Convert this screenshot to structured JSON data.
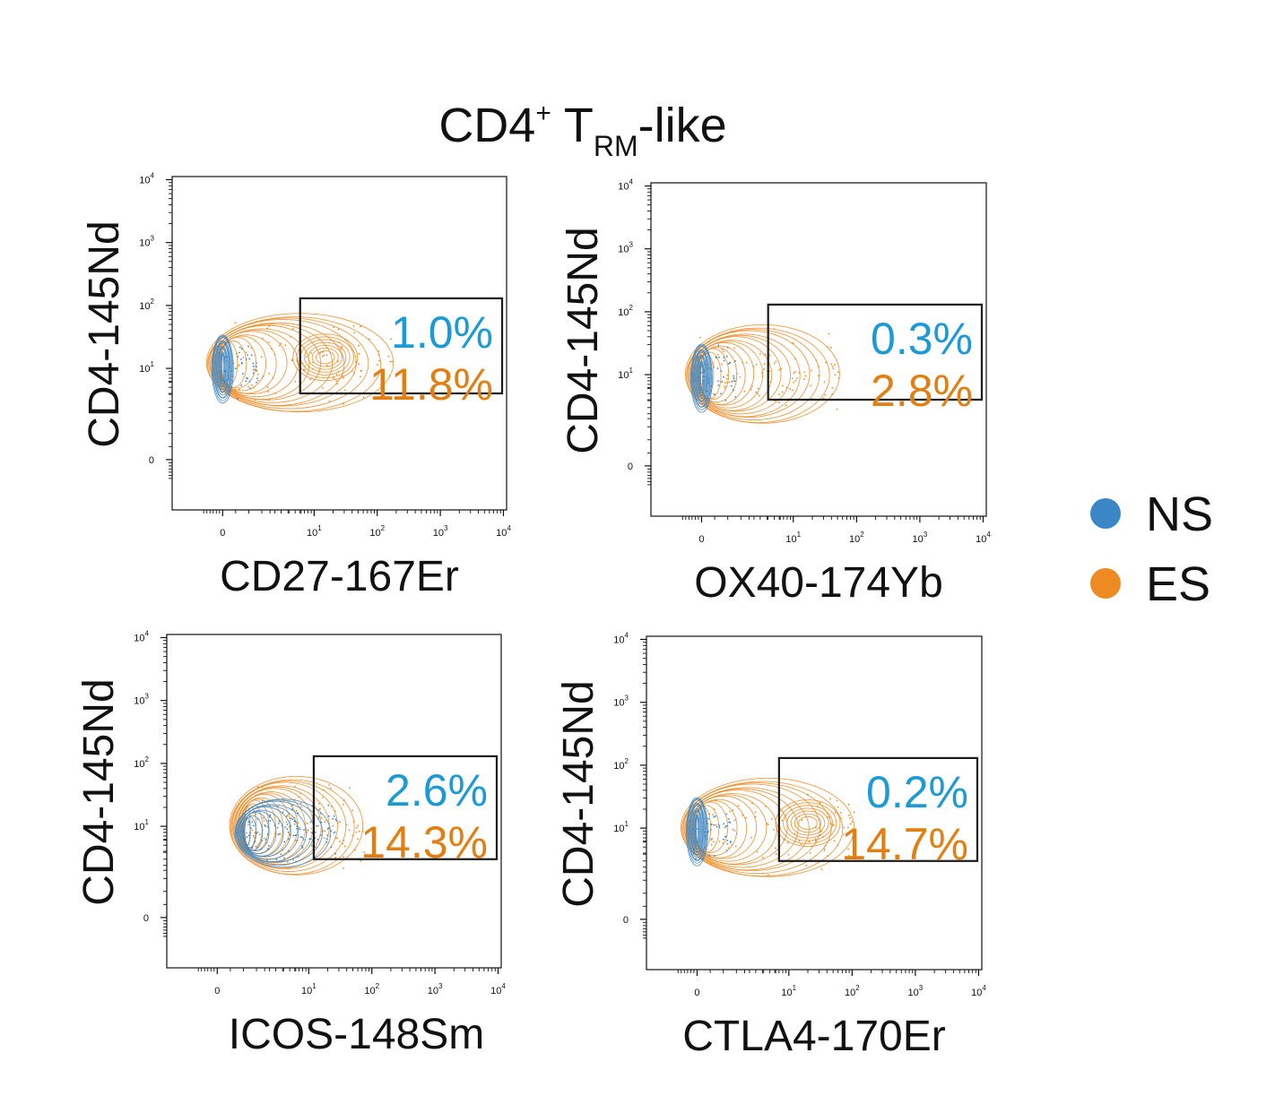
{
  "title": {
    "main": "CD4",
    "sup": "+",
    "mid": " T",
    "sub": "RM",
    "tail": "-like"
  },
  "colors": {
    "NS": "#3b86c6",
    "ES": "#ee8a22",
    "NS_text": "#1c9ad6",
    "ES_text": "#e27f12",
    "gate": "#1a1a1a"
  },
  "legend": [
    {
      "label": "NS",
      "color": "#3b86c6"
    },
    {
      "label": "ES",
      "color": "#ee8a22"
    }
  ],
  "chart_data": [
    {
      "type": "scatter",
      "xlabel": "CD27-167Er",
      "ylabel": "CD4-145Nd",
      "x_scale": "biexponential",
      "y_scale": "biexponential",
      "xlim": [
        -1,
        10000
      ],
      "ylim": [
        -1,
        10000
      ],
      "x_ticks": [
        "0",
        "10^1",
        "10^2",
        "10^3",
        "10^4"
      ],
      "y_ticks": [
        "0",
        "10^1",
        "10^2",
        "10^3",
        "10^4"
      ],
      "gate": {
        "x": [
          6,
          10000
        ],
        "y": [
          4,
          130
        ]
      },
      "series": [
        {
          "name": "NS",
          "gate_percent": "1.0%",
          "center": [
            0,
            10
          ],
          "spread_x": "narrow",
          "spread_y": "0.5 decade"
        },
        {
          "name": "ES",
          "gate_percent": "11.8%",
          "center": [
            0,
            12
          ],
          "extends_to_x": 100,
          "secondary_center": [
            15,
            15
          ]
        }
      ]
    },
    {
      "type": "scatter",
      "xlabel": "OX40-174Yb",
      "ylabel": "CD4-145Nd",
      "x_scale": "biexponential",
      "y_scale": "biexponential",
      "xlim": [
        -1,
        10000
      ],
      "ylim": [
        -1,
        10000
      ],
      "x_ticks": [
        "0",
        "10^1",
        "10^2",
        "10^3",
        "10^4"
      ],
      "y_ticks": [
        "0",
        "10^1",
        "10^2",
        "10^3",
        "10^4"
      ],
      "gate": {
        "x": [
          4,
          10000
        ],
        "y": [
          4,
          130
        ]
      },
      "series": [
        {
          "name": "NS",
          "gate_percent": "0.3%",
          "center": [
            0,
            9
          ]
        },
        {
          "name": "ES",
          "gate_percent": "2.8%",
          "center": [
            0,
            10
          ],
          "extends_to_x": 30
        }
      ]
    },
    {
      "type": "scatter",
      "xlabel": "ICOS-148Sm",
      "ylabel": "CD4-145Nd",
      "x_scale": "biexponential",
      "y_scale": "biexponential",
      "xlim": [
        -1,
        10000
      ],
      "ylim": [
        -1,
        10000
      ],
      "x_ticks": [
        "0",
        "10^1",
        "10^2",
        "10^3",
        "10^4"
      ],
      "y_ticks": [
        "0",
        "10^1",
        "10^2",
        "10^3",
        "10^4"
      ],
      "gate": {
        "x": [
          12,
          10000
        ],
        "y": [
          3,
          130
        ]
      },
      "series": [
        {
          "name": "NS",
          "gate_percent": "2.6%",
          "center": [
            1,
            8
          ],
          "extends_to_x": 15
        },
        {
          "name": "ES",
          "gate_percent": "14.3%",
          "center": [
            1,
            10
          ],
          "extends_to_x": 40
        }
      ]
    },
    {
      "type": "scatter",
      "xlabel": "CTLA4-170Er",
      "ylabel": "CD4-145Nd",
      "x_scale": "biexponential",
      "y_scale": "biexponential",
      "xlim": [
        -1,
        10000
      ],
      "ylim": [
        -1,
        10000
      ],
      "x_ticks": [
        "0",
        "10^1",
        "10^2",
        "10^3",
        "10^4"
      ],
      "y_ticks": [
        "0",
        "10^1",
        "10^2",
        "10^3",
        "10^4"
      ],
      "gate": {
        "x": [
          7,
          10000
        ],
        "y": [
          3,
          130
        ]
      },
      "series": [
        {
          "name": "NS",
          "gate_percent": "0.2%",
          "center": [
            0,
            9
          ]
        },
        {
          "name": "ES",
          "gate_percent": "14.7%",
          "center": [
            0,
            10
          ],
          "extends_to_x": 60,
          "secondary_center": [
            20,
            12
          ]
        }
      ]
    }
  ]
}
